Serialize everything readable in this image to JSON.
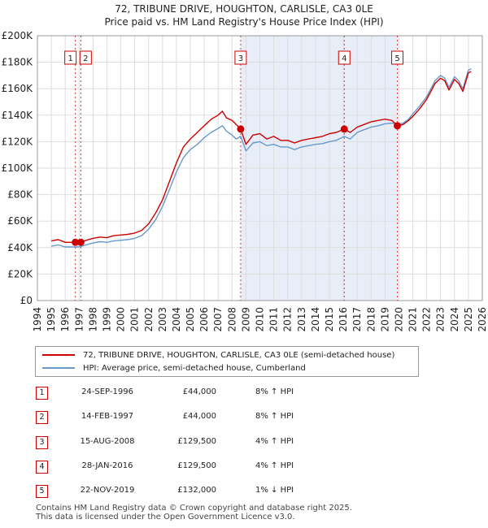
{
  "title_line1": "72, TRIBUNE DRIVE, HOUGHTON, CARLISLE, CA3 0LE",
  "title_line2": "Price paid vs. HM Land Registry's House Price Index (HPI)",
  "colors": {
    "price_line": "#cc0000",
    "hpi_line": "#6699cc",
    "shade": "#e8eef8",
    "grid": "#dddddd"
  },
  "chart_data": {
    "type": "line",
    "xlim": [
      1994,
      2026
    ],
    "ylim": [
      0,
      200000
    ],
    "x_ticks": [
      "1994",
      "1995",
      "1996",
      "1997",
      "1998",
      "1999",
      "2000",
      "2001",
      "2002",
      "2003",
      "2004",
      "2005",
      "2006",
      "2007",
      "2008",
      "2009",
      "2010",
      "2011",
      "2012",
      "2013",
      "2014",
      "2015",
      "2016",
      "2017",
      "2018",
      "2019",
      "2020",
      "2021",
      "2022",
      "2023",
      "2024",
      "2025",
      "2026"
    ],
    "y_ticks": [
      {
        "value": 0,
        "label": "£0"
      },
      {
        "value": 20000,
        "label": "£20K"
      },
      {
        "value": 40000,
        "label": "£40K"
      },
      {
        "value": 60000,
        "label": "£60K"
      },
      {
        "value": 80000,
        "label": "£80K"
      },
      {
        "value": 100000,
        "label": "£100K"
      },
      {
        "value": 120000,
        "label": "£120K"
      },
      {
        "value": 140000,
        "label": "£140K"
      },
      {
        "value": 160000,
        "label": "£160K"
      },
      {
        "value": 180000,
        "label": "£180K"
      },
      {
        "value": 200000,
        "label": "£200K"
      }
    ],
    "series": [
      {
        "name": "72, TRIBUNE DRIVE, HOUGHTON, CARLISLE, CA3 0LE (semi-detached house)",
        "color": "#cc0000",
        "x": [
          1995.0,
          1995.5,
          1996.0,
          1996.73,
          1997.12,
          1997.5,
          1998.0,
          1998.5,
          1999.0,
          1999.5,
          2000.0,
          2000.5,
          2001.0,
          2001.5,
          2002.0,
          2002.5,
          2003.0,
          2003.5,
          2004.0,
          2004.5,
          2005.0,
          2005.5,
          2006.0,
          2006.5,
          2007.0,
          2007.3,
          2007.6,
          2008.0,
          2008.3,
          2008.62,
          2009.0,
          2009.5,
          2010.0,
          2010.5,
          2011.0,
          2011.5,
          2012.0,
          2012.5,
          2013.0,
          2013.5,
          2014.0,
          2014.5,
          2015.0,
          2015.5,
          2016.07,
          2016.5,
          2017.0,
          2017.5,
          2018.0,
          2018.5,
          2019.0,
          2019.5,
          2019.89,
          2020.3,
          2020.7,
          2021.0,
          2021.5,
          2022.0,
          2022.3,
          2022.6,
          2023.0,
          2023.3,
          2023.6,
          2024.0,
          2024.3,
          2024.6,
          2025.0,
          2025.2
        ],
        "y": [
          45000,
          46000,
          44000,
          44000,
          44000,
          45500,
          47000,
          48000,
          47500,
          49000,
          49500,
          50000,
          51000,
          53000,
          58000,
          66000,
          76000,
          90000,
          104000,
          116000,
          122000,
          127000,
          132000,
          137000,
          140000,
          143000,
          138000,
          136000,
          133000,
          129500,
          118000,
          125000,
          126000,
          122000,
          124000,
          121000,
          121000,
          119000,
          121000,
          122000,
          123000,
          124000,
          126000,
          127000,
          129500,
          127000,
          131000,
          133000,
          135000,
          136000,
          137000,
          136000,
          132000,
          133000,
          136000,
          139000,
          145000,
          152000,
          158000,
          164000,
          168000,
          166000,
          159000,
          167000,
          164000,
          158000,
          172000,
          173000
        ]
      },
      {
        "name": "HPI: Average price, semi-detached house, Cumberland",
        "color": "#6699cc",
        "x": [
          1995.0,
          1995.5,
          1996.0,
          1996.5,
          1997.0,
          1997.5,
          1998.0,
          1998.5,
          1999.0,
          1999.5,
          2000.0,
          2000.5,
          2001.0,
          2001.5,
          2002.0,
          2002.5,
          2003.0,
          2003.5,
          2004.0,
          2004.5,
          2005.0,
          2005.5,
          2006.0,
          2006.5,
          2007.0,
          2007.3,
          2007.6,
          2008.0,
          2008.3,
          2008.62,
          2009.0,
          2009.5,
          2010.0,
          2010.5,
          2011.0,
          2011.5,
          2012.0,
          2012.5,
          2013.0,
          2013.5,
          2014.0,
          2014.5,
          2015.0,
          2015.5,
          2016.07,
          2016.5,
          2017.0,
          2017.5,
          2018.0,
          2018.5,
          2019.0,
          2019.5,
          2019.89,
          2020.3,
          2020.7,
          2021.0,
          2021.5,
          2022.0,
          2022.3,
          2022.6,
          2023.0,
          2023.3,
          2023.6,
          2024.0,
          2024.3,
          2024.6,
          2025.0,
          2025.2
        ],
        "y": [
          41000,
          42000,
          40500,
          40500,
          40500,
          42000,
          43500,
          44500,
          44000,
          45000,
          45500,
          46000,
          47000,
          49000,
          54000,
          61000,
          71000,
          84000,
          97000,
          108000,
          114000,
          118000,
          123000,
          127000,
          130000,
          132000,
          128000,
          125000,
          122000,
          124000,
          113000,
          119000,
          120000,
          117000,
          118000,
          116000,
          116000,
          114000,
          116000,
          117000,
          118000,
          118500,
          120000,
          121000,
          124000,
          122000,
          127000,
          129000,
          131000,
          132000,
          133500,
          134000,
          133500,
          134000,
          137000,
          141000,
          147000,
          154000,
          160000,
          166000,
          170000,
          168000,
          161000,
          169000,
          166000,
          160000,
          174000,
          175000
        ]
      }
    ],
    "sales": [
      {
        "label": "1",
        "x": 1996.73,
        "y": 44000
      },
      {
        "label": "2",
        "x": 1997.12,
        "y": 44000
      },
      {
        "label": "3",
        "x": 2008.62,
        "y": 129500
      },
      {
        "label": "4",
        "x": 2016.07,
        "y": 129500
      },
      {
        "label": "5",
        "x": 2019.89,
        "y": 132000
      }
    ],
    "shaded_range": [
      2008.62,
      2019.89
    ]
  },
  "legend": {
    "price": "72, TRIBUNE DRIVE, HOUGHTON, CARLISLE, CA3 0LE (semi-detached house)",
    "hpi": "HPI: Average price, semi-detached house, Cumberland"
  },
  "sales_table": [
    {
      "num": "1",
      "date": "24-SEP-1996",
      "price": "£44,000",
      "hpi": "8% ↑ HPI"
    },
    {
      "num": "2",
      "date": "14-FEB-1997",
      "price": "£44,000",
      "hpi": "8% ↑ HPI"
    },
    {
      "num": "3",
      "date": "15-AUG-2008",
      "price": "£129,500",
      "hpi": "4% ↑ HPI"
    },
    {
      "num": "4",
      "date": "28-JAN-2016",
      "price": "£129,500",
      "hpi": "4% ↑ HPI"
    },
    {
      "num": "5",
      "date": "22-NOV-2019",
      "price": "£132,000",
      "hpi": "1% ↓ HPI"
    }
  ],
  "footer": {
    "line1": "Contains HM Land Registry data © Crown copyright and database right 2025.",
    "line2": "This data is licensed under the Open Government Licence v3.0."
  }
}
